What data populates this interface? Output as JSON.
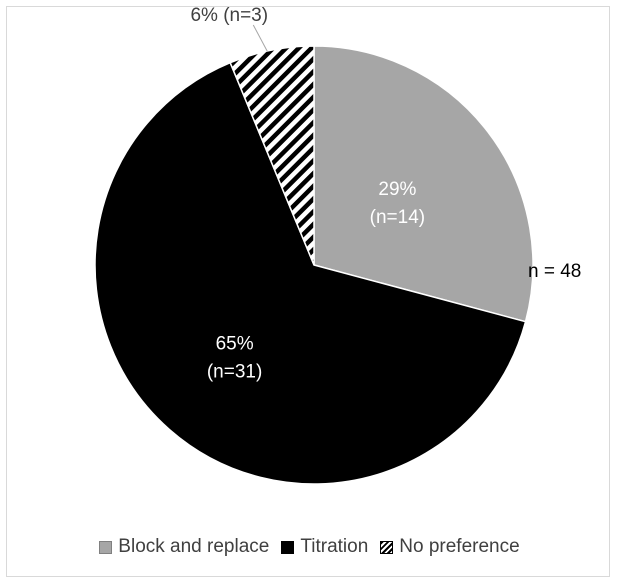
{
  "chart_data": {
    "type": "pie",
    "title": "",
    "total_label": "n = 48",
    "slices": [
      {
        "name": "Block and replace",
        "value": 14,
        "percent": 29,
        "label_pct": "29%",
        "label_n": "(n=14)",
        "color": "#a6a6a6",
        "pattern": "solid"
      },
      {
        "name": "Titration",
        "value": 31,
        "percent": 65,
        "label_pct": "65%",
        "label_n": "(n=31)",
        "color": "#000000",
        "pattern": "solid"
      },
      {
        "name": "No preference",
        "value": 3,
        "percent": 6,
        "label_pct": "6%",
        "label_n": "(n=3)",
        "label": "6% (n=3)",
        "color": "#000000",
        "pattern": "diagonal-stripes"
      }
    ],
    "legend_position": "bottom",
    "colors": {
      "label_light": "#ffffff",
      "label_dark": "#404040",
      "slice_border": "#ffffff"
    }
  }
}
